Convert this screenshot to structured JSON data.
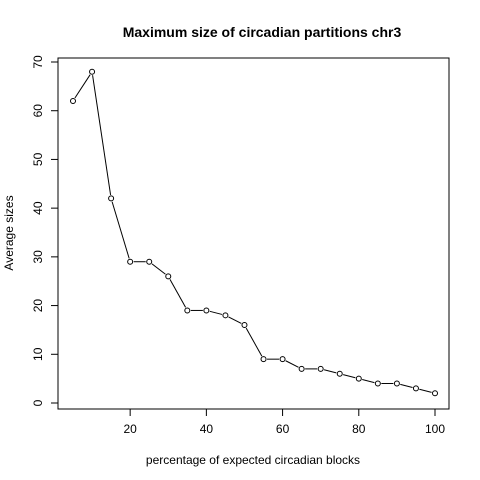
{
  "chart_data": {
    "type": "line",
    "title": "Maximum size of circadian partitions chr3",
    "xlabel": "percentage of expected circadian blocks",
    "ylabel": "Average sizes",
    "x": [
      5,
      10,
      15,
      20,
      25,
      30,
      35,
      40,
      45,
      50,
      55,
      60,
      65,
      70,
      75,
      80,
      85,
      90,
      95,
      100
    ],
    "series": [
      {
        "values": [
          62,
          68,
          42,
          29,
          29,
          26,
          19,
          19,
          18,
          16,
          9,
          9,
          7,
          7,
          6,
          5,
          4,
          4,
          3,
          2
        ]
      }
    ],
    "xlim": [
      5,
      100
    ],
    "ylim": [
      0,
      70
    ],
    "xticks": [
      20,
      40,
      60,
      80,
      100
    ],
    "yticks": [
      0,
      10,
      20,
      30,
      40,
      50,
      60,
      70
    ],
    "xtick_labels": [
      "20",
      "40",
      "60",
      "80",
      "100"
    ],
    "ytick_labels": [
      "0",
      "10",
      "20",
      "30",
      "40",
      "50",
      "60",
      "70"
    ],
    "grid": false,
    "marker": "open-circle",
    "line_color": "#000000"
  }
}
